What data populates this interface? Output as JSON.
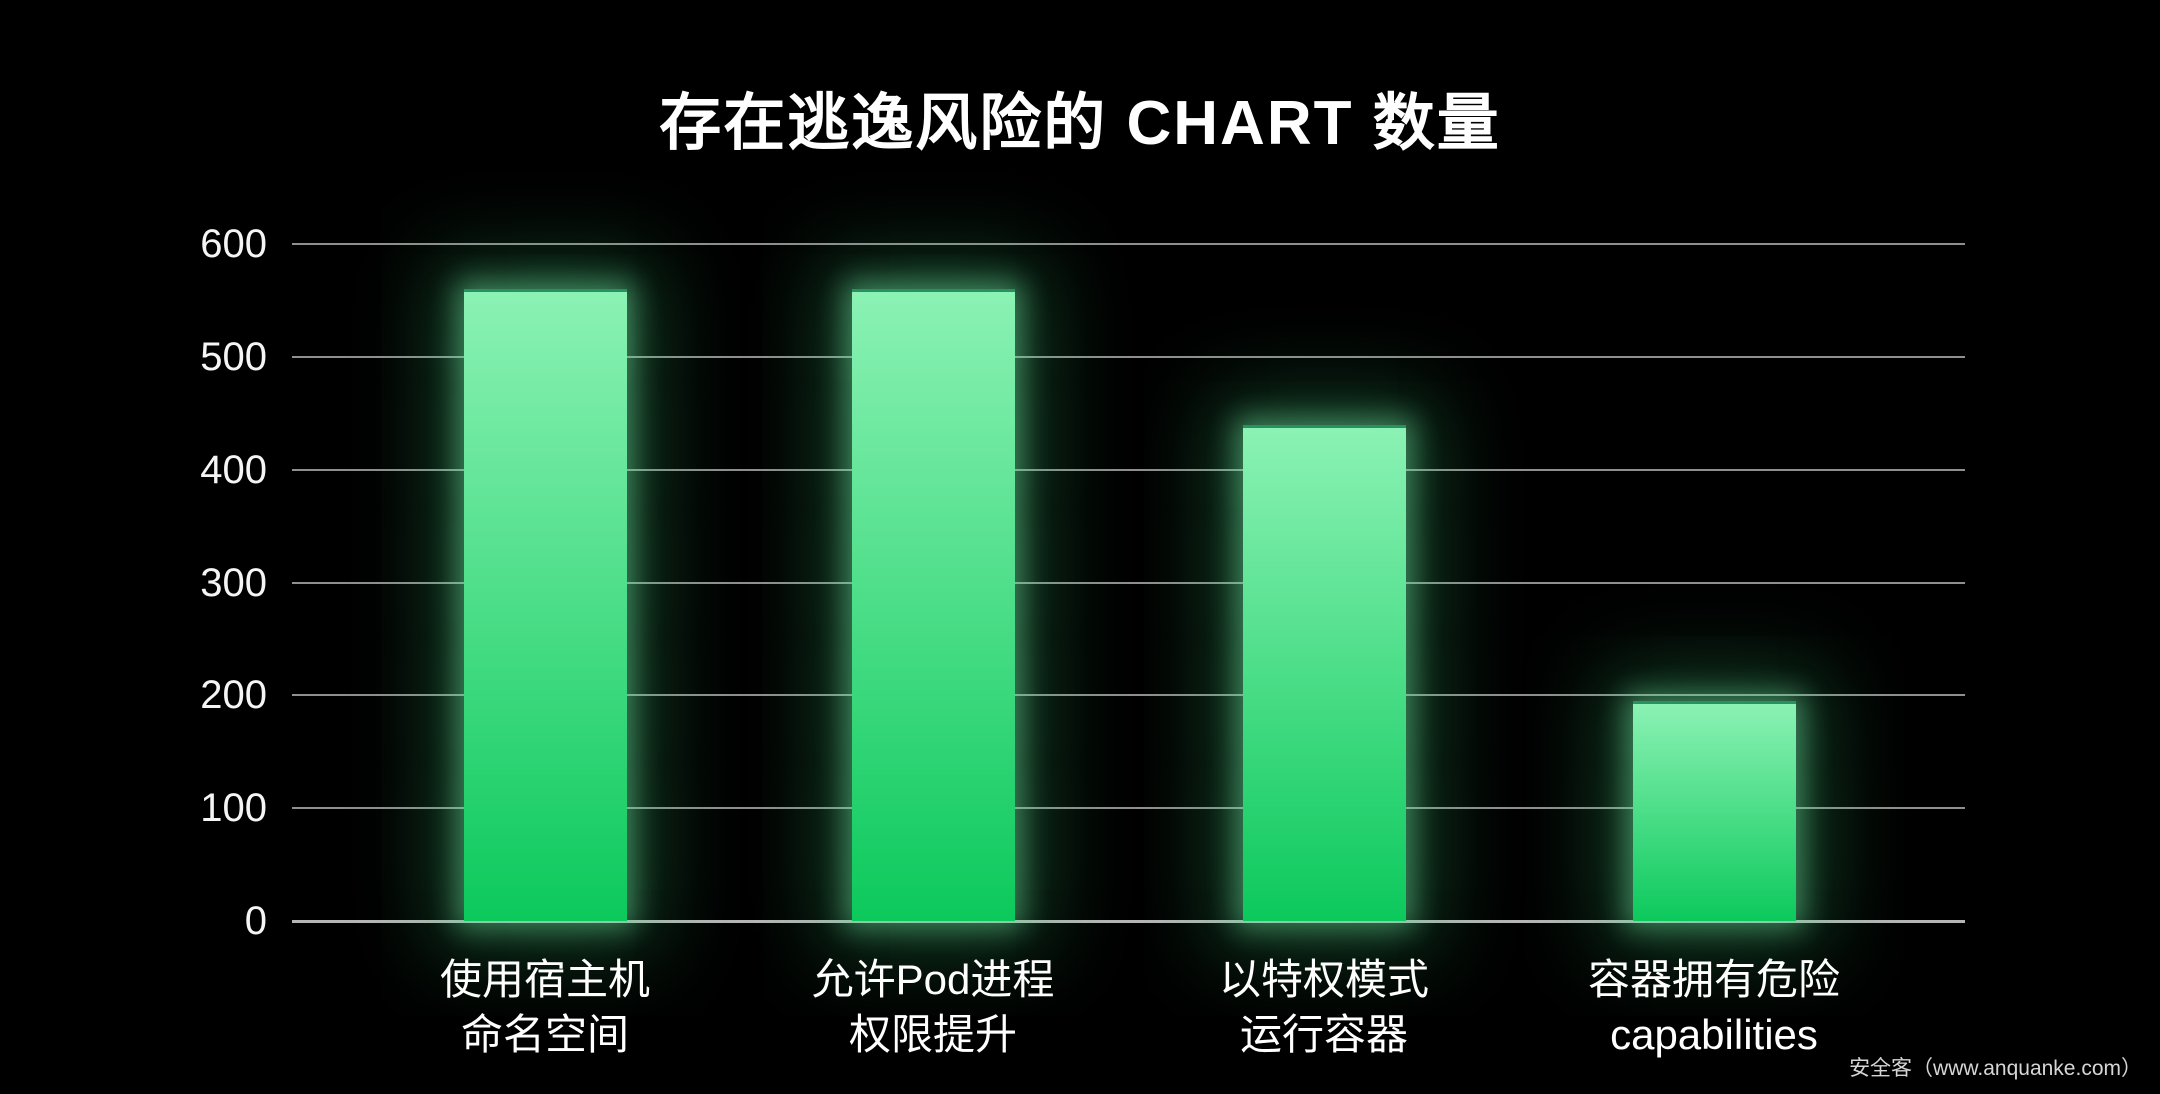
{
  "title": "存在逃逸风险的 CHART 数量",
  "watermark": "安全客（www.anquanke.com）",
  "chart_data": {
    "type": "bar",
    "title": "存在逃逸风险的 CHART 数量",
    "categories": [
      [
        "使用宿主机",
        "命名空间"
      ],
      [
        "允许Pod进程",
        "权限提升"
      ],
      [
        "以特权模式",
        "运行容器"
      ],
      [
        "容器拥有危险",
        "capabilities"
      ]
    ],
    "values": [
      560,
      560,
      440,
      195
    ],
    "xlabel": "",
    "ylabel": "",
    "ylim": [
      0,
      600
    ],
    "yticks": [
      0,
      100,
      200,
      300,
      400,
      500,
      600
    ],
    "grid": true,
    "legend": false,
    "background_color": "#000000",
    "bar_color_top": "#8bf2b4",
    "bar_color_bottom": "#0cc95c",
    "glow_color": "#3fe08a",
    "gridline_color": "#8f8f8f",
    "baseline_color": "#b5b5b5",
    "text_color": "#ffffff"
  }
}
